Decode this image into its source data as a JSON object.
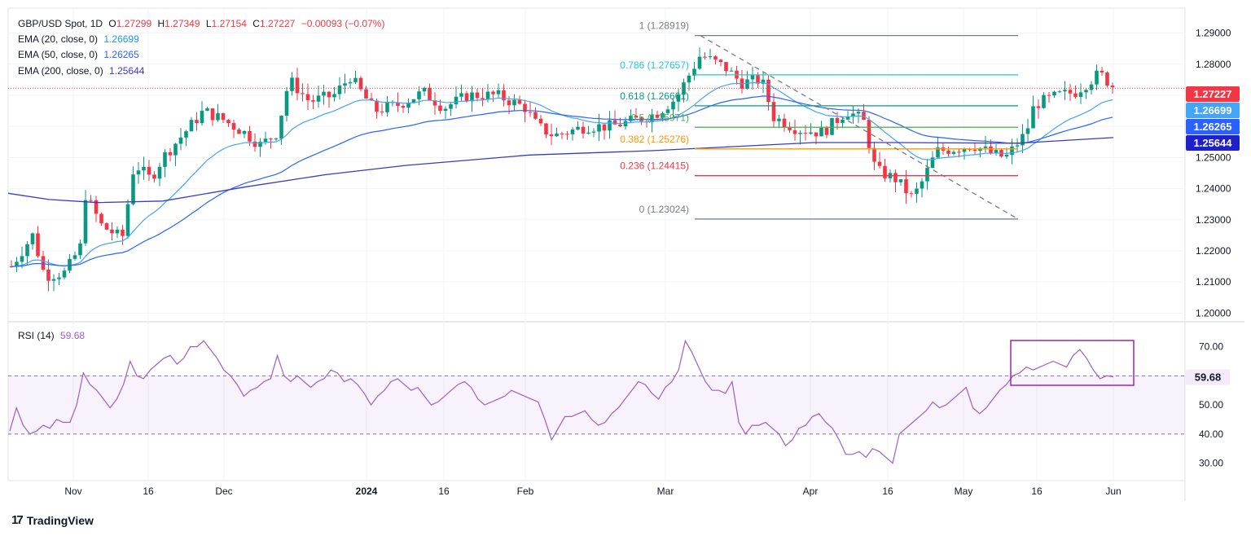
{
  "header": {
    "symbol": "GBP/USD Spot, 1D",
    "o_label": "O",
    "open": "1.27299",
    "h_label": "H",
    "high": "1.27349",
    "l_label": "L",
    "low": "1.27154",
    "c_label": "C",
    "close": "1.27227",
    "change": "−0.00093 (−0.07%)"
  },
  "indicators": [
    {
      "label": "EMA (20, close, 0)",
      "value": "1.26699",
      "color": "#42a5f5"
    },
    {
      "label": "EMA (50, close, 0)",
      "value": "1.26265",
      "color": "#2962ff"
    },
    {
      "label": "EMA (200, close, 0)",
      "value": "1.25644",
      "color": "#3a3ac2"
    }
  ],
  "rsi_legend": {
    "label": "RSI (14)",
    "value": "59.68",
    "color": "#9c5fc9"
  },
  "brand": "TradingView",
  "colors": {
    "up": "#089981",
    "down": "#f23645",
    "rsi": "#9c5fc9",
    "price_tag": "#f23645"
  },
  "chart_data": {
    "type": "candlestick",
    "x_ticks": [
      "Nov",
      "16",
      "Dec",
      "2024",
      "16",
      "Feb",
      "Mar",
      "Apr",
      "16",
      "May",
      "16",
      "Jun"
    ],
    "price_axis": {
      "ticks": [
        "1.29000",
        "1.28000",
        "1.27000",
        "1.26000",
        "1.25000",
        "1.24000",
        "1.23000",
        "1.22000",
        "1.21000",
        "1.20000"
      ],
      "range": [
        1.198,
        1.298
      ]
    },
    "last_price": "1.27227",
    "ema_tags": [
      "1.26699",
      "1.26265",
      "1.25644"
    ],
    "fib_levels": [
      {
        "label": "1 (1.28919)",
        "value": 1.28919,
        "color": "#787b86"
      },
      {
        "label": "0.786 (1.27657)",
        "value": 1.27657,
        "color": "#26c6da"
      },
      {
        "label": "0.618 (1.26661)",
        "value": 1.26661,
        "color": "#089981"
      },
      {
        "label": "0.5 (1.25971)",
        "value": 1.25971,
        "color": "#4caf50"
      },
      {
        "label": "0.382 (1.25276)",
        "value": 1.25276,
        "color": "#ff9800"
      },
      {
        "label": "0.236 (1.24415)",
        "value": 1.24415,
        "color": "#f23645"
      },
      {
        "label": "0 (1.23024)",
        "value": 1.23024,
        "color": "#787b86"
      }
    ],
    "rsi": {
      "ticks": [
        "70.00",
        "60.00",
        "50.00",
        "40.00",
        "30.00"
      ],
      "range": [
        24,
        78
      ],
      "current": "59.68",
      "values": [
        41,
        49,
        43,
        40,
        41,
        43,
        42,
        45,
        44,
        44,
        50,
        61,
        57,
        55,
        52,
        49,
        52,
        57,
        65,
        60,
        59,
        62,
        64,
        66,
        67,
        64,
        66,
        70,
        70,
        72,
        69,
        66,
        62,
        60,
        57,
        53,
        55,
        56,
        58,
        59,
        67,
        60,
        58,
        60,
        58,
        56,
        58,
        59,
        62,
        61,
        58,
        59,
        57,
        54,
        50,
        53,
        55,
        58,
        59,
        57,
        55,
        56,
        53,
        50,
        51,
        53,
        55,
        57,
        58,
        56,
        52,
        50,
        51,
        52,
        53,
        55,
        54,
        53,
        52,
        51,
        45,
        38,
        42,
        46,
        46,
        47,
        48,
        45,
        43,
        44,
        47,
        49,
        52,
        55,
        58,
        57,
        54,
        52,
        56,
        58,
        62,
        72,
        68,
        63,
        58,
        55,
        55,
        54,
        58,
        44,
        40,
        43,
        43,
        44,
        42,
        40,
        36,
        38,
        42,
        43,
        46,
        47,
        44,
        42,
        38,
        33,
        33,
        34,
        32,
        35,
        34,
        32,
        30,
        40,
        42,
        44,
        46,
        48,
        51,
        49,
        50,
        52,
        54,
        56,
        49,
        47,
        49,
        52,
        55,
        57,
        60,
        61,
        63,
        62,
        63,
        64,
        65,
        64,
        63,
        67,
        69,
        66,
        62,
        59,
        60,
        59.68
      ]
    },
    "candles_summary": "daily OHLC, Oct 2023 – Jun 2024"
  }
}
